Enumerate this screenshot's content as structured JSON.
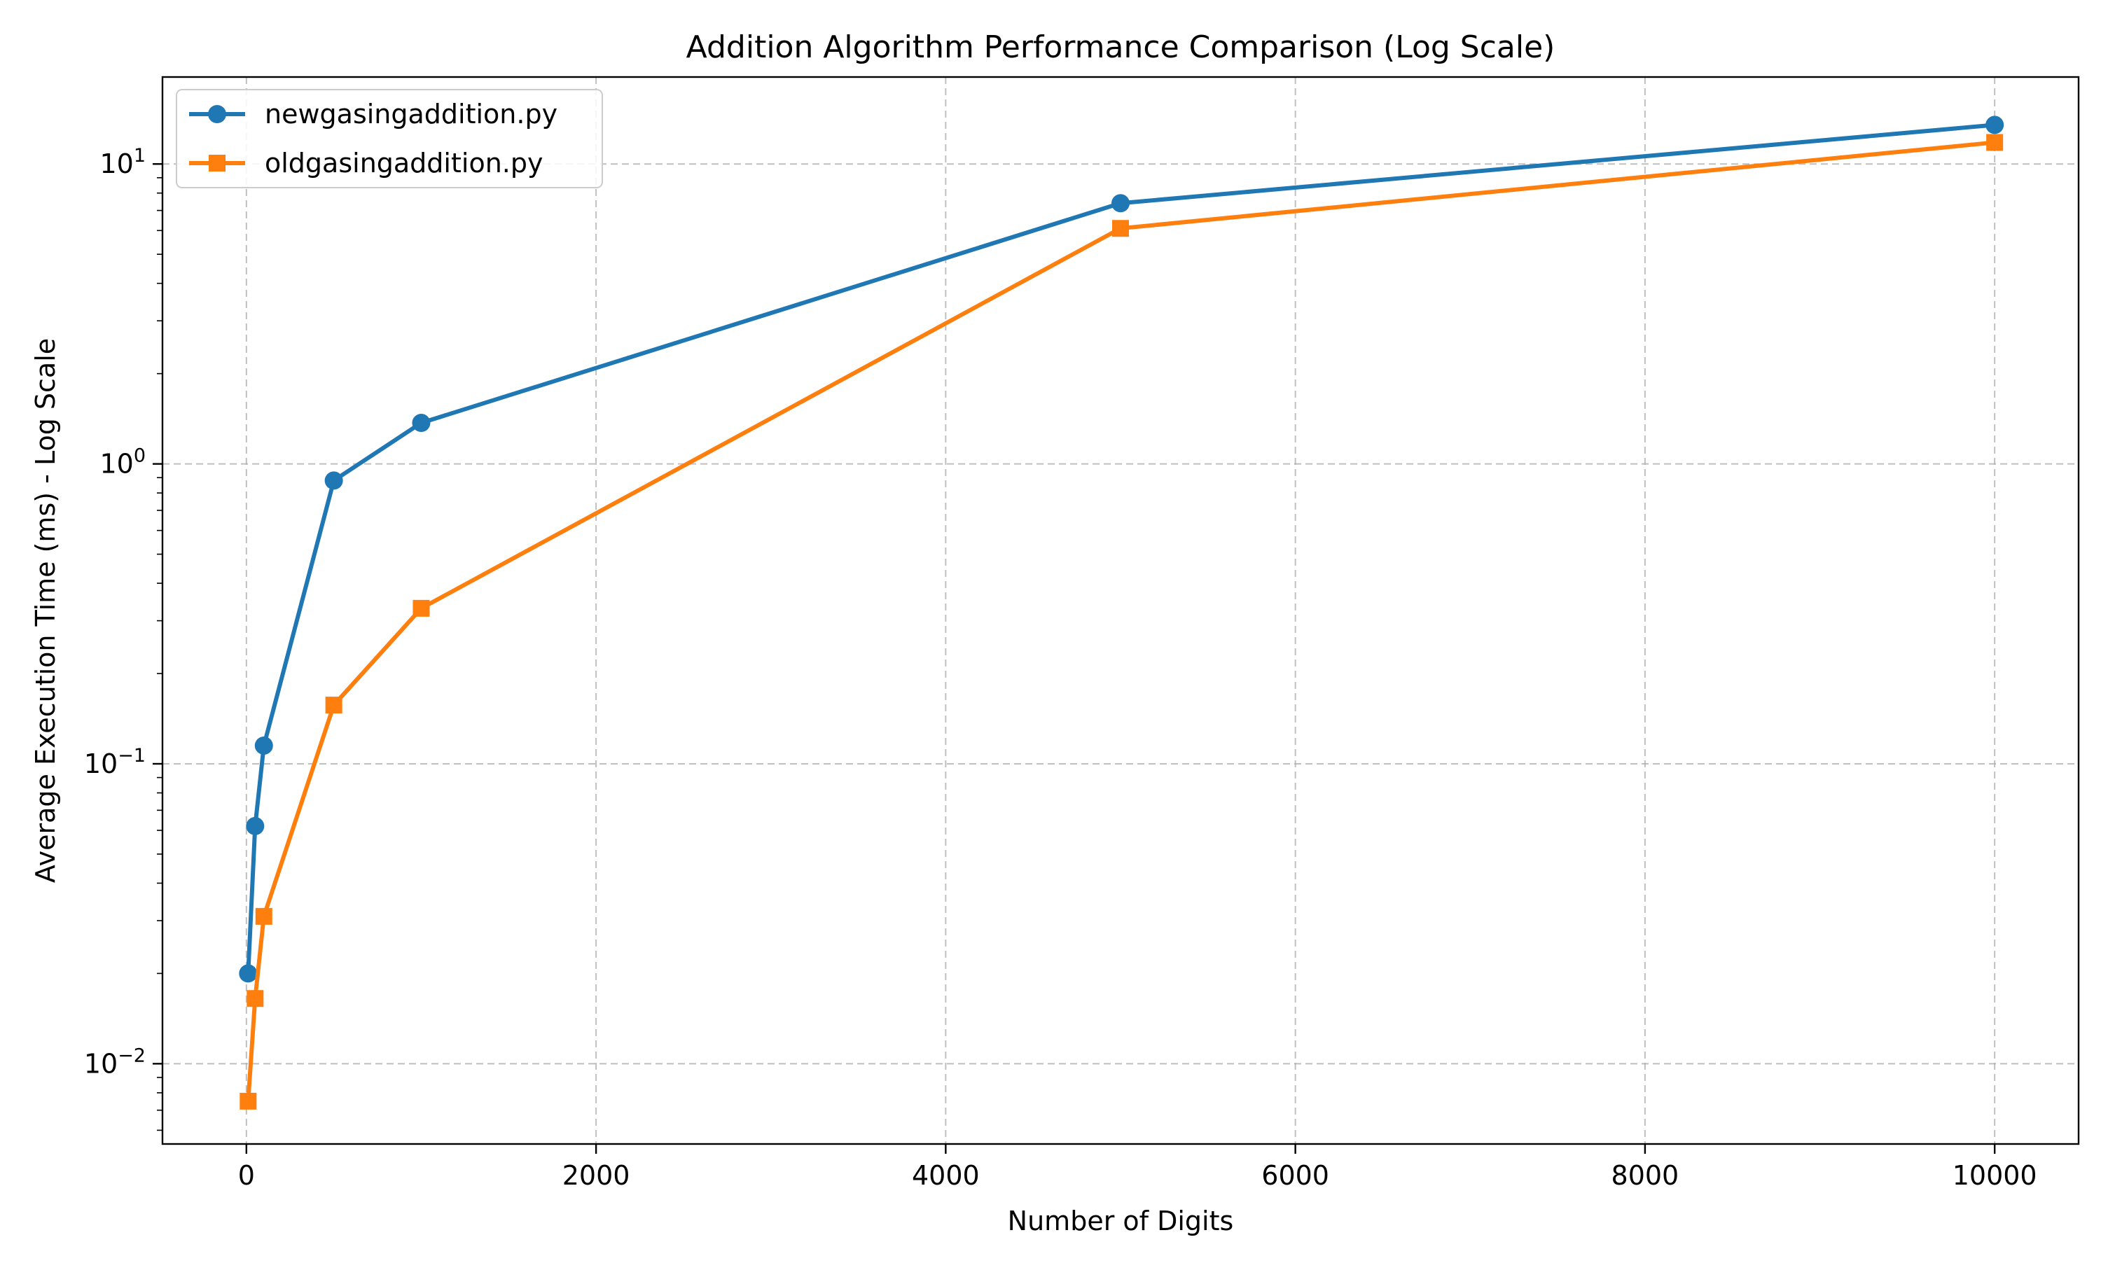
{
  "chart_data": {
    "type": "line",
    "title": "Addition Algorithm Performance Comparison (Log Scale)",
    "xlabel": "Number of Digits",
    "ylabel": "Average Execution Time (ms) - Log Scale",
    "x_scale": "linear",
    "y_scale": "log",
    "xlim": [
      -480,
      10480
    ],
    "ylim": [
      0.0054,
      19.5
    ],
    "x_ticks": [
      0,
      2000,
      4000,
      6000,
      8000,
      10000
    ],
    "x_tick_labels": [
      "0",
      "2000",
      "4000",
      "6000",
      "8000",
      "10000"
    ],
    "y_ticks": [
      0.01,
      0.1,
      1,
      10
    ],
    "y_tick_labels": [
      {
        "base": "10",
        "exp": "−2"
      },
      {
        "base": "10",
        "exp": "−1"
      },
      {
        "base": "10",
        "exp": "0"
      },
      {
        "base": "10",
        "exp": "1"
      }
    ],
    "grid": true,
    "grid_style": "dashed",
    "legend_position": "top-left",
    "series": [
      {
        "name": "newgasingaddition.py",
        "color": "#1f77b4",
        "marker": "circle",
        "x": [
          10,
          50,
          100,
          500,
          1000,
          5000,
          10000
        ],
        "y": [
          0.02,
          0.062,
          0.115,
          0.88,
          1.37,
          7.4,
          13.5
        ]
      },
      {
        "name": "oldgasingaddition.py",
        "color": "#ff7f0e",
        "marker": "square",
        "x": [
          10,
          50,
          100,
          500,
          1000,
          5000,
          10000
        ],
        "y": [
          0.0075,
          0.0165,
          0.031,
          0.157,
          0.33,
          6.1,
          11.8
        ]
      }
    ]
  }
}
